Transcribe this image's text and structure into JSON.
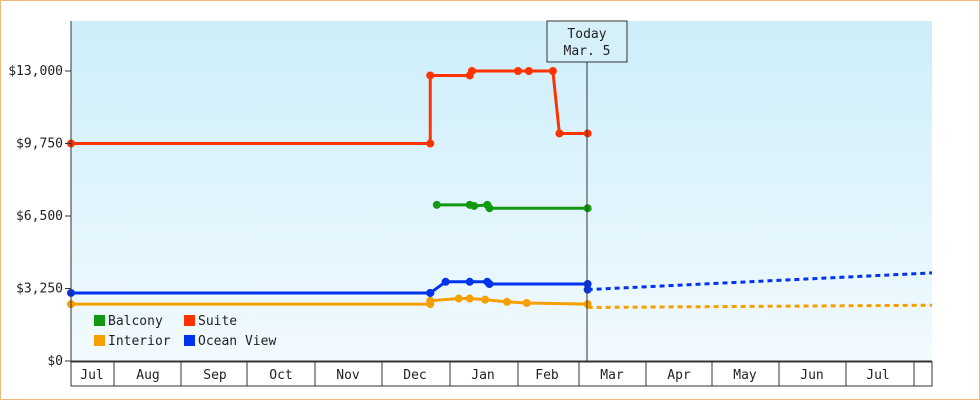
{
  "chart_data": {
    "type": "line",
    "title": "",
    "xlabel": "",
    "ylabel": "",
    "x_ticks": [
      "Jul",
      "Aug",
      "Sep",
      "Oct",
      "Nov",
      "Dec",
      "Jan",
      "Feb",
      "Mar",
      "Apr",
      "May",
      "Jun",
      "Jul"
    ],
    "y_ticks": [
      "$0",
      "$3,250",
      "$6,500",
      "$9,750",
      "$13,000"
    ],
    "ylim": [
      0,
      13000
    ],
    "grid": false,
    "legend_position": "bottom-left",
    "today_marker": {
      "line1": "Today",
      "line2": "Mar. 5"
    },
    "series": [
      {
        "name": "Balcony",
        "color": "#119911",
        "style": "solid",
        "points": [
          [
            "Dec 26",
            7000
          ],
          [
            "Jan 10",
            7000
          ],
          [
            "Jan 12",
            6950
          ],
          [
            "Jan 18",
            7000
          ],
          [
            "Jan 19",
            6850
          ],
          [
            "Mar 5",
            6850
          ]
        ]
      },
      {
        "name": "Suite",
        "color": "#ff3300",
        "style": "solid",
        "points": [
          [
            "Jul 1",
            9750
          ],
          [
            "Dec 23",
            9750
          ],
          [
            "Dec 23",
            12800
          ],
          [
            "Jan 10",
            12800
          ],
          [
            "Jan 11",
            13000
          ],
          [
            "Feb 1",
            13000
          ],
          [
            "Feb 6",
            13000
          ],
          [
            "Feb 17",
            13000
          ],
          [
            "Feb 20",
            10200
          ],
          [
            "Mar 5",
            10200
          ]
        ]
      },
      {
        "name": "Interior",
        "color": "#f5a000",
        "style": "solid",
        "points": [
          [
            "Jul 1",
            2550
          ],
          [
            "Dec 23",
            2550
          ],
          [
            "Dec 23",
            2700
          ],
          [
            "Jan 5",
            2800
          ],
          [
            "Jan 10",
            2800
          ],
          [
            "Jan 17",
            2750
          ],
          [
            "Jan 27",
            2650
          ],
          [
            "Feb 5",
            2600
          ],
          [
            "Mar 5",
            2550
          ]
        ]
      },
      {
        "name": "Ocean View",
        "color": "#0033ee",
        "style": "solid",
        "points": [
          [
            "Jul 1",
            3050
          ],
          [
            "Dec 23",
            3050
          ],
          [
            "Dec 23",
            3050
          ],
          [
            "Dec 30",
            3550
          ],
          [
            "Jan 10",
            3550
          ],
          [
            "Jan 18",
            3550
          ],
          [
            "Jan 19",
            3450
          ],
          [
            "Mar 5",
            3450
          ],
          [
            "Mar 5",
            3200
          ]
        ]
      }
    ],
    "forecast": [
      {
        "name": "Ocean View",
        "color": "#0033ee",
        "style": "dashed",
        "points": [
          [
            "Mar 5",
            3200
          ],
          [
            "Jul 31",
            3950
          ]
        ]
      },
      {
        "name": "Interior",
        "color": "#f5a000",
        "style": "dashed",
        "points": [
          [
            "Mar 5",
            2400
          ],
          [
            "Jul 31",
            2500
          ]
        ]
      }
    ]
  }
}
